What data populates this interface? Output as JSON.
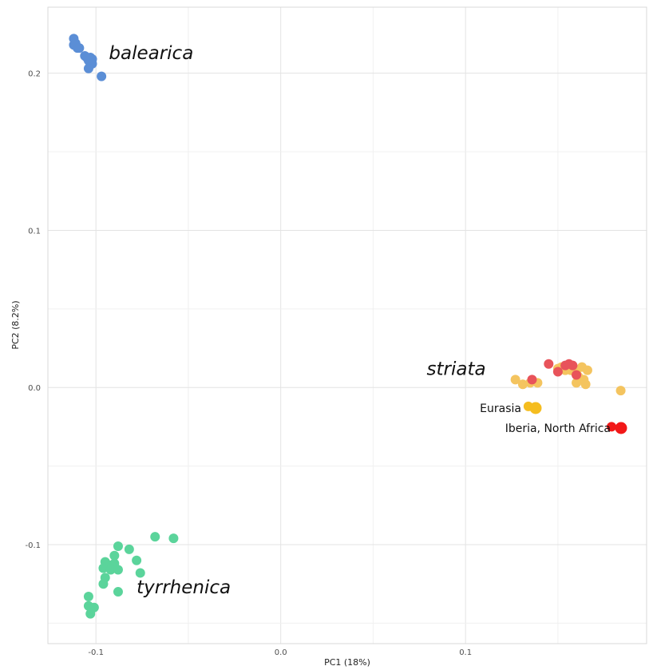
{
  "chart_data": {
    "type": "scatter",
    "xlabel": "PC1 (18%)",
    "ylabel": "PC2 (8.2%)",
    "xlim": [
      -0.126,
      0.198
    ],
    "ylim": [
      -0.163,
      0.242
    ],
    "xticks": [
      -0.1,
      0.0,
      0.1
    ],
    "xtick_labels": [
      "-0.1",
      "0.0",
      "0.1"
    ],
    "yticks": [
      -0.1,
      0.0,
      0.1,
      0.2
    ],
    "ytick_labels": [
      "-0.1",
      "0.0",
      "0.1",
      "0.2"
    ],
    "grid": true,
    "group_labels": [
      {
        "text": "balearica",
        "x": -0.093,
        "y": 0.209
      },
      {
        "text": "striata",
        "x": 0.079,
        "y": 0.008
      },
      {
        "text": "tyrrhenica",
        "x": -0.078,
        "y": -0.131
      }
    ],
    "legend": [
      {
        "label": "Eurasia",
        "color": "#f5bd1f"
      },
      {
        "label": "Iberia, North Africa",
        "color": "#f21818"
      }
    ],
    "series": [
      {
        "color": "#5b8ed6",
        "points": [
          [
            -0.112,
            0.222
          ],
          [
            -0.111,
            0.219
          ],
          [
            -0.112,
            0.218
          ],
          [
            -0.11,
            0.216
          ],
          [
            -0.109,
            0.216
          ],
          [
            -0.106,
            0.211
          ],
          [
            -0.105,
            0.21
          ],
          [
            -0.103,
            0.21
          ],
          [
            -0.102,
            0.209
          ],
          [
            -0.104,
            0.208
          ],
          [
            -0.102,
            0.206
          ],
          [
            -0.104,
            0.203
          ],
          [
            -0.097,
            0.198
          ]
        ]
      },
      {
        "color": "#f4c45f",
        "points": [
          [
            0.127,
            0.005
          ],
          [
            0.131,
            0.002
          ],
          [
            0.135,
            0.003
          ],
          [
            0.139,
            0.003
          ],
          [
            0.15,
            0.012
          ],
          [
            0.152,
            0.013
          ],
          [
            0.154,
            0.011
          ],
          [
            0.157,
            0.011
          ],
          [
            0.159,
            0.01
          ],
          [
            0.16,
            0.009
          ],
          [
            0.161,
            0.007
          ],
          [
            0.163,
            0.013
          ],
          [
            0.166,
            0.011
          ],
          [
            0.164,
            0.005
          ],
          [
            0.16,
            0.003
          ],
          [
            0.165,
            0.002
          ],
          [
            0.184,
            -0.002
          ]
        ]
      },
      {
        "color": "#e8535a",
        "points": [
          [
            0.136,
            0.005
          ],
          [
            0.145,
            0.015
          ],
          [
            0.15,
            0.01
          ],
          [
            0.154,
            0.014
          ],
          [
            0.156,
            0.015
          ],
          [
            0.158,
            0.014
          ],
          [
            0.16,
            0.008
          ]
        ]
      },
      {
        "color": "#5bd49b",
        "points": [
          [
            -0.068,
            -0.095
          ],
          [
            -0.058,
            -0.096
          ],
          [
            -0.088,
            -0.101
          ],
          [
            -0.082,
            -0.103
          ],
          [
            -0.09,
            -0.107
          ],
          [
            -0.095,
            -0.111
          ],
          [
            -0.093,
            -0.113
          ],
          [
            -0.09,
            -0.112
          ],
          [
            -0.096,
            -0.115
          ],
          [
            -0.092,
            -0.116
          ],
          [
            -0.088,
            -0.116
          ],
          [
            -0.078,
            -0.11
          ],
          [
            -0.076,
            -0.118
          ],
          [
            -0.095,
            -0.121
          ],
          [
            -0.096,
            -0.125
          ],
          [
            -0.088,
            -0.13
          ],
          [
            -0.104,
            -0.133
          ],
          [
            -0.104,
            -0.139
          ],
          [
            -0.101,
            -0.14
          ],
          [
            -0.103,
            -0.144
          ]
        ]
      },
      {
        "color": "#f5bd1f",
        "points": [
          [
            0.134,
            -0.012
          ]
        ]
      },
      {
        "color": "#f21818",
        "points": [
          [
            0.179,
            -0.025
          ]
        ]
      }
    ]
  }
}
